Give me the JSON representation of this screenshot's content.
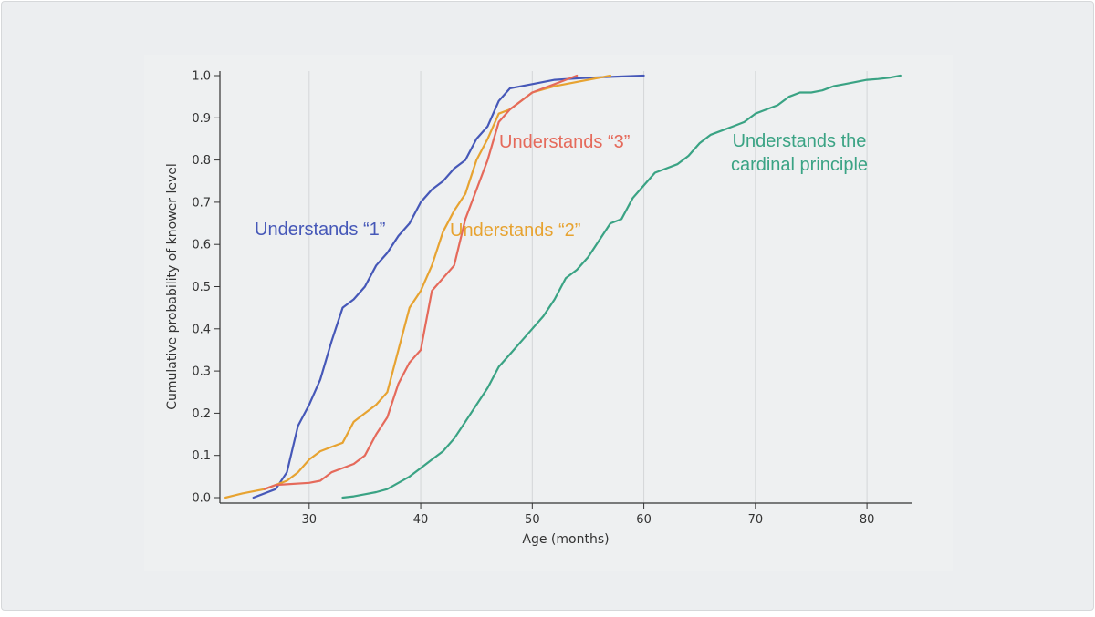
{
  "chart_data": {
    "type": "line",
    "xlabel": "Age (months)",
    "ylabel": "Cumulative probability of knower level",
    "xlim": [
      22,
      84
    ],
    "ylim": [
      0,
      1
    ],
    "x_ticks": [
      30,
      40,
      50,
      60,
      70,
      80
    ],
    "y_ticks": [
      0.0,
      0.1,
      0.2,
      0.3,
      0.4,
      0.5,
      0.6,
      0.7,
      0.8,
      0.9,
      1.0
    ],
    "grid": "vertical",
    "series": [
      {
        "name": "Understands “1”",
        "color": "#4658b8",
        "label_lines": [
          "Understands “1”"
        ],
        "x": [
          25,
          27,
          28,
          29,
          30,
          31,
          32,
          33,
          34,
          35,
          36,
          37,
          38,
          39,
          40,
          41,
          42,
          43,
          44,
          45,
          46,
          47,
          48,
          50,
          52,
          55,
          60
        ],
        "y": [
          0.0,
          0.02,
          0.06,
          0.17,
          0.22,
          0.28,
          0.37,
          0.45,
          0.47,
          0.5,
          0.55,
          0.58,
          0.62,
          0.65,
          0.7,
          0.73,
          0.75,
          0.78,
          0.8,
          0.85,
          0.88,
          0.94,
          0.97,
          0.98,
          0.99,
          0.995,
          1.0
        ]
      },
      {
        "name": "Understands “2”",
        "color": "#e7a331",
        "label_lines": [
          "Understands “2”"
        ],
        "x": [
          22.5,
          24,
          26,
          28,
          29,
          30,
          31,
          32,
          33,
          34,
          35,
          36,
          37,
          38,
          39,
          40,
          41,
          42,
          43,
          44,
          45,
          46,
          47,
          48,
          49,
          50,
          52,
          54,
          56,
          57
        ],
        "y": [
          0.0,
          0.01,
          0.02,
          0.04,
          0.06,
          0.09,
          0.11,
          0.12,
          0.13,
          0.18,
          0.2,
          0.22,
          0.25,
          0.35,
          0.45,
          0.49,
          0.55,
          0.63,
          0.68,
          0.72,
          0.8,
          0.85,
          0.91,
          0.92,
          0.94,
          0.96,
          0.975,
          0.985,
          0.995,
          1.0
        ]
      },
      {
        "name": "Understands “3”",
        "color": "#e56a5b",
        "label_lines": [
          "Understands “3”"
        ],
        "x": [
          26,
          27,
          30,
          31,
          32,
          33,
          34,
          35,
          36,
          37,
          38,
          39,
          40,
          41,
          42,
          43,
          44,
          45,
          46,
          47,
          48,
          49,
          50,
          51,
          52,
          53,
          54
        ],
        "y": [
          0.02,
          0.03,
          0.035,
          0.04,
          0.06,
          0.07,
          0.08,
          0.1,
          0.15,
          0.19,
          0.27,
          0.32,
          0.35,
          0.49,
          0.52,
          0.55,
          0.66,
          0.73,
          0.8,
          0.89,
          0.92,
          0.94,
          0.96,
          0.97,
          0.98,
          0.99,
          1.0
        ]
      },
      {
        "name": "Understands the cardinal principle",
        "color": "#3aa384",
        "label_lines": [
          "Understands the",
          "cardinal principle"
        ],
        "x": [
          33,
          34,
          35,
          36,
          37,
          38,
          39,
          40,
          41,
          42,
          43,
          44,
          45,
          46,
          47,
          48,
          49,
          50,
          51,
          52,
          53,
          54,
          55,
          56,
          57,
          58,
          59,
          60,
          61,
          62,
          63,
          64,
          65,
          66,
          67,
          68,
          69,
          70,
          71,
          72,
          73,
          74,
          75,
          76,
          77,
          78,
          79,
          80,
          81,
          82,
          83
        ],
        "y": [
          0.0,
          0.003,
          0.008,
          0.013,
          0.02,
          0.035,
          0.05,
          0.07,
          0.09,
          0.11,
          0.14,
          0.18,
          0.22,
          0.26,
          0.31,
          0.34,
          0.37,
          0.4,
          0.43,
          0.47,
          0.52,
          0.54,
          0.57,
          0.61,
          0.65,
          0.66,
          0.71,
          0.74,
          0.77,
          0.78,
          0.79,
          0.81,
          0.84,
          0.86,
          0.87,
          0.88,
          0.89,
          0.91,
          0.92,
          0.93,
          0.95,
          0.96,
          0.96,
          0.965,
          0.975,
          0.98,
          0.985,
          0.99,
          0.992,
          0.995,
          1.0
        ]
      }
    ]
  }
}
